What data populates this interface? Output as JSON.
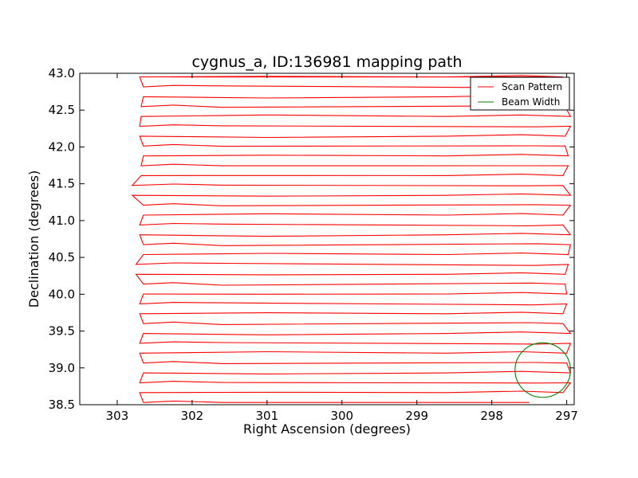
{
  "chart_data": {
    "type": "line",
    "title": "cygnus_a, ID:136981 mapping path",
    "xlabel": "Right Ascension (degrees)",
    "ylabel": "Declination (degrees)",
    "xlim": [
      303.5,
      296.9
    ],
    "ylim": [
      38.5,
      43.0
    ],
    "x_ticks": [
      303,
      302,
      301,
      300,
      299,
      298,
      297
    ],
    "x_tick_labels": [
      "303",
      "302",
      "301",
      "300",
      "299",
      "298",
      "297"
    ],
    "y_ticks": [
      38.5,
      39.0,
      39.5,
      40.0,
      40.5,
      41.0,
      41.5,
      42.0,
      42.5,
      43.0
    ],
    "y_tick_labels": [
      "38.5",
      "39.0",
      "39.5",
      "40.0",
      "40.5",
      "41.0",
      "41.5",
      "42.0",
      "42.5",
      "43.0"
    ],
    "grid": false,
    "legend_position": "top-right",
    "series": [
      {
        "name": "Scan Pattern",
        "color": "#ff0000",
        "right_edge": [
          297.05,
          296.95,
          297.0,
          296.95,
          297.05,
          297.0,
          297.02,
          296.98,
          296.95,
          297.05,
          296.95,
          297.05,
          296.98,
          297.02,
          296.95,
          297.02,
          297.05,
          296.97
        ],
        "left_edge": [
          302.65,
          302.7,
          302.65,
          302.7,
          302.65,
          302.7,
          302.65,
          302.75,
          302.65,
          302.7,
          302.65,
          302.8,
          302.68,
          302.65,
          302.7,
          302.68
        ],
        "path_start": [
          299.2,
          38.53
        ],
        "path_end": [
          302.3,
          42.95
        ]
      },
      {
        "name": "Beam Width",
        "color": "#008000",
        "center": [
          297.32,
          38.97
        ],
        "radius_deg": 0.37
      }
    ]
  }
}
